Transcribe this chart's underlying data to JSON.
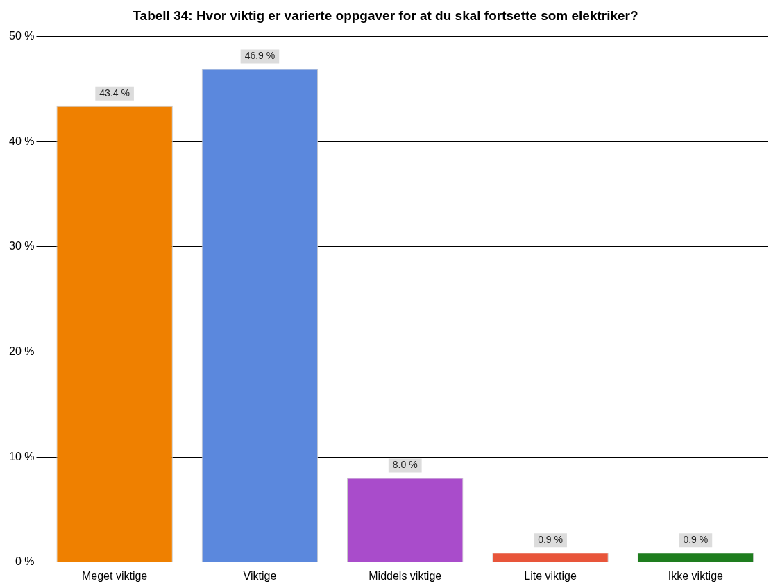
{
  "chart_data": {
    "type": "bar",
    "title": "Tabell 34: Hvor viktig er varierte oppgaver for at du skal fortsette som elektriker?",
    "categories": [
      "Meget viktige",
      "Viktige",
      "Middels viktige",
      "Lite viktige",
      "Ikke viktige"
    ],
    "values": [
      43.4,
      46.9,
      8.0,
      0.9,
      0.9
    ],
    "colors": [
      "#ef8000",
      "#5b88dd",
      "#a94ccb",
      "#e8553a",
      "#1e7d1e"
    ],
    "value_labels": [
      "43.4 %",
      "46.9 %",
      "8.0 %",
      "0.9 %",
      "0.9 %"
    ],
    "ylim": [
      0,
      50
    ],
    "yticks": [
      {
        "value": 0,
        "label": "0 %"
      },
      {
        "value": 10,
        "label": "10 %"
      },
      {
        "value": 20,
        "label": "20 %"
      },
      {
        "value": 30,
        "label": "30 %"
      },
      {
        "value": 40,
        "label": "40 %"
      },
      {
        "value": 50,
        "label": "50 %"
      }
    ],
    "grid": "y",
    "legend": false
  }
}
